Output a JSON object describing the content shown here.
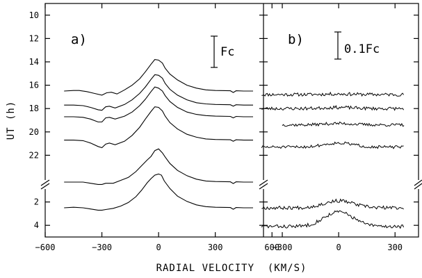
{
  "chart_data": {
    "type": "line",
    "xlabel": "RADIAL VELOCITY  (KM/S)",
    "ylabel": "UT (h)",
    "y_axis": {
      "ticks": [
        "10",
        "12",
        "14",
        "16",
        "18",
        "20",
        "22",
        "2",
        "4"
      ],
      "range": [
        9,
        29
      ],
      "axis_break_between": [
        "22",
        "2"
      ]
    },
    "panels": [
      {
        "label": "a)",
        "scale_bar_label": "Fc",
        "x_axis": {
          "range": [
            -600,
            555
          ],
          "ticks": [
            -600,
            -300,
            0,
            300,
            600
          ],
          "tick_labels": [
            "−600",
            "−300",
            "0",
            "300",
            "600"
          ]
        },
        "series": [
          {
            "baseline_ut": 16.5,
            "points": [
              [
                -500,
                0
              ],
              [
                -450,
                0.1
              ],
              [
                -420,
                0.1
              ],
              [
                -380,
                -0.1
              ],
              [
                -340,
                -0.4
              ],
              [
                -300,
                -0.7
              ],
              [
                -275,
                -0.3
              ],
              [
                -250,
                -0.2
              ],
              [
                -220,
                -0.5
              ],
              [
                -180,
                0.2
              ],
              [
                -140,
                1.0
              ],
              [
                -100,
                2.1
              ],
              [
                -70,
                3.3
              ],
              [
                -40,
                4.6
              ],
              [
                -20,
                5.4
              ],
              [
                0,
                5.3
              ],
              [
                20,
                4.8
              ],
              [
                35,
                3.9
              ],
              [
                60,
                2.9
              ],
              [
                100,
                1.9
              ],
              [
                150,
                1.0
              ],
              [
                200,
                0.5
              ],
              [
                250,
                0.2
              ],
              [
                300,
                0.1
              ],
              [
                380,
                0.05
              ],
              [
                395,
                -0.25
              ],
              [
                410,
                0.05
              ],
              [
                450,
                0
              ],
              [
                500,
                0
              ]
            ]
          },
          {
            "baseline_ut": 17.7,
            "points": [
              [
                -500,
                0
              ],
              [
                -450,
                0
              ],
              [
                -400,
                -0.1
              ],
              [
                -360,
                -0.4
              ],
              [
                -320,
                -0.8
              ],
              [
                -300,
                -0.9
              ],
              [
                -280,
                -0.3
              ],
              [
                -260,
                -0.2
              ],
              [
                -230,
                -0.5
              ],
              [
                -180,
                0.1
              ],
              [
                -140,
                0.9
              ],
              [
                -100,
                2.0
              ],
              [
                -70,
                3.1
              ],
              [
                -40,
                4.4
              ],
              [
                -20,
                5.2
              ],
              [
                0,
                5.1
              ],
              [
                20,
                4.6
              ],
              [
                35,
                3.7
              ],
              [
                60,
                2.7
              ],
              [
                100,
                1.7
              ],
              [
                150,
                0.9
              ],
              [
                200,
                0.4
              ],
              [
                250,
                0.2
              ],
              [
                300,
                0.1
              ],
              [
                380,
                0.05
              ],
              [
                395,
                -0.2
              ],
              [
                410,
                0.05
              ],
              [
                450,
                0
              ],
              [
                500,
                0
              ]
            ]
          },
          {
            "baseline_ut": 18.7,
            "points": [
              [
                -500,
                0
              ],
              [
                -450,
                0
              ],
              [
                -400,
                -0.1
              ],
              [
                -360,
                -0.4
              ],
              [
                -320,
                -0.9
              ],
              [
                -300,
                -0.9
              ],
              [
                -280,
                -0.2
              ],
              [
                -260,
                -0.1
              ],
              [
                -230,
                -0.4
              ],
              [
                -180,
                0.1
              ],
              [
                -140,
                0.8
              ],
              [
                -100,
                1.9
              ],
              [
                -70,
                3.0
              ],
              [
                -40,
                4.3
              ],
              [
                -20,
                5.1
              ],
              [
                0,
                4.9
              ],
              [
                20,
                4.4
              ],
              [
                35,
                3.6
              ],
              [
                60,
                2.6
              ],
              [
                100,
                1.6
              ],
              [
                150,
                0.8
              ],
              [
                200,
                0.4
              ],
              [
                250,
                0.2
              ],
              [
                300,
                0.1
              ],
              [
                380,
                0.05
              ],
              [
                395,
                -0.2
              ],
              [
                410,
                0.05
              ],
              [
                450,
                0
              ],
              [
                500,
                0
              ]
            ]
          },
          {
            "baseline_ut": 20.7,
            "points": [
              [
                -500,
                0
              ],
              [
                -450,
                0
              ],
              [
                -400,
                -0.1
              ],
              [
                -360,
                -0.5
              ],
              [
                -320,
                -1.1
              ],
              [
                -300,
                -1.3
              ],
              [
                -280,
                -0.7
              ],
              [
                -260,
                -0.5
              ],
              [
                -230,
                -0.8
              ],
              [
                -180,
                -0.2
              ],
              [
                -140,
                0.8
              ],
              [
                -100,
                2.2
              ],
              [
                -70,
                3.6
              ],
              [
                -40,
                4.9
              ],
              [
                -20,
                5.7
              ],
              [
                0,
                5.6
              ],
              [
                20,
                5.0
              ],
              [
                35,
                4.1
              ],
              [
                60,
                3.0
              ],
              [
                100,
                1.9
              ],
              [
                150,
                1.0
              ],
              [
                200,
                0.5
              ],
              [
                250,
                0.2
              ],
              [
                300,
                0.1
              ],
              [
                380,
                0.05
              ],
              [
                395,
                -0.2
              ],
              [
                410,
                0.05
              ],
              [
                450,
                0
              ],
              [
                500,
                0
              ]
            ]
          },
          {
            "baseline_ut": 24.3,
            "points": [
              [
                -500,
                0
              ],
              [
                -450,
                0
              ],
              [
                -400,
                0
              ],
              [
                -360,
                -0.2
              ],
              [
                -320,
                -0.4
              ],
              [
                -300,
                -0.4
              ],
              [
                -280,
                -0.2
              ],
              [
                -240,
                -0.2
              ],
              [
                -200,
                0.3
              ],
              [
                -160,
                0.8
              ],
              [
                -120,
                1.8
              ],
              [
                -90,
                2.8
              ],
              [
                -60,
                3.8
              ],
              [
                -40,
                4.4
              ],
              [
                -20,
                5.4
              ],
              [
                0,
                5.7
              ],
              [
                20,
                5.0
              ],
              [
                35,
                4.3
              ],
              [
                60,
                3.2
              ],
              [
                100,
                2.0
              ],
              [
                150,
                1.1
              ],
              [
                200,
                0.5
              ],
              [
                250,
                0.2
              ],
              [
                300,
                0.1
              ],
              [
                380,
                0.05
              ],
              [
                395,
                -0.25
              ],
              [
                410,
                0.05
              ],
              [
                450,
                0
              ],
              [
                500,
                0
              ]
            ]
          },
          {
            "baseline_ut": 26.5,
            "points": [
              [
                -500,
                0
              ],
              [
                -450,
                0.1
              ],
              [
                -400,
                0
              ],
              [
                -360,
                -0.2
              ],
              [
                -320,
                -0.4
              ],
              [
                -300,
                -0.4
              ],
              [
                -280,
                -0.3
              ],
              [
                -240,
                -0.1
              ],
              [
                -200,
                0.3
              ],
              [
                -160,
                0.9
              ],
              [
                -120,
                1.9
              ],
              [
                -90,
                3.0
              ],
              [
                -60,
                4.3
              ],
              [
                -40,
                5.0
              ],
              [
                -20,
                5.6
              ],
              [
                0,
                5.8
              ],
              [
                15,
                5.6
              ],
              [
                30,
                4.6
              ],
              [
                60,
                3.3
              ],
              [
                100,
                2.0
              ],
              [
                150,
                1.1
              ],
              [
                200,
                0.5
              ],
              [
                250,
                0.2
              ],
              [
                300,
                0.1
              ],
              [
                380,
                0.05
              ],
              [
                395,
                -0.25
              ],
              [
                410,
                0.05
              ],
              [
                450,
                0
              ],
              [
                500,
                0
              ]
            ]
          }
        ]
      },
      {
        "label": "b)",
        "scale_bar_label": "0.1Fc",
        "x_axis": {
          "range": [
            -400,
            425
          ],
          "ticks": [
            -300,
            0,
            300
          ],
          "tick_labels": [
            "−300",
            "0",
            "300"
          ]
        },
        "series": [
          {
            "baseline_ut": 16.8,
            "range": [
              -410,
              350
            ],
            "noise": 0.28,
            "bump": 0.1,
            "seed": 11
          },
          {
            "baseline_ut": 18.0,
            "range": [
              -410,
              350
            ],
            "noise": 0.28,
            "bump": 0.2,
            "seed": 23
          },
          {
            "baseline_ut": 19.4,
            "range": [
              -300,
              350
            ],
            "noise": 0.25,
            "bump": 0.25,
            "seed": 37
          },
          {
            "baseline_ut": 21.3,
            "range": [
              -410,
              350
            ],
            "noise": 0.25,
            "bump": 0.7,
            "seed": 51
          },
          {
            "baseline_ut": 26.5,
            "range": [
              -410,
              350
            ],
            "noise": 0.3,
            "bump": 1.2,
            "seed": 67
          },
          {
            "baseline_ut": 28.1,
            "range": [
              -410,
              350
            ],
            "noise": 0.3,
            "bump": 2.5,
            "seed": 83
          }
        ]
      }
    ]
  }
}
